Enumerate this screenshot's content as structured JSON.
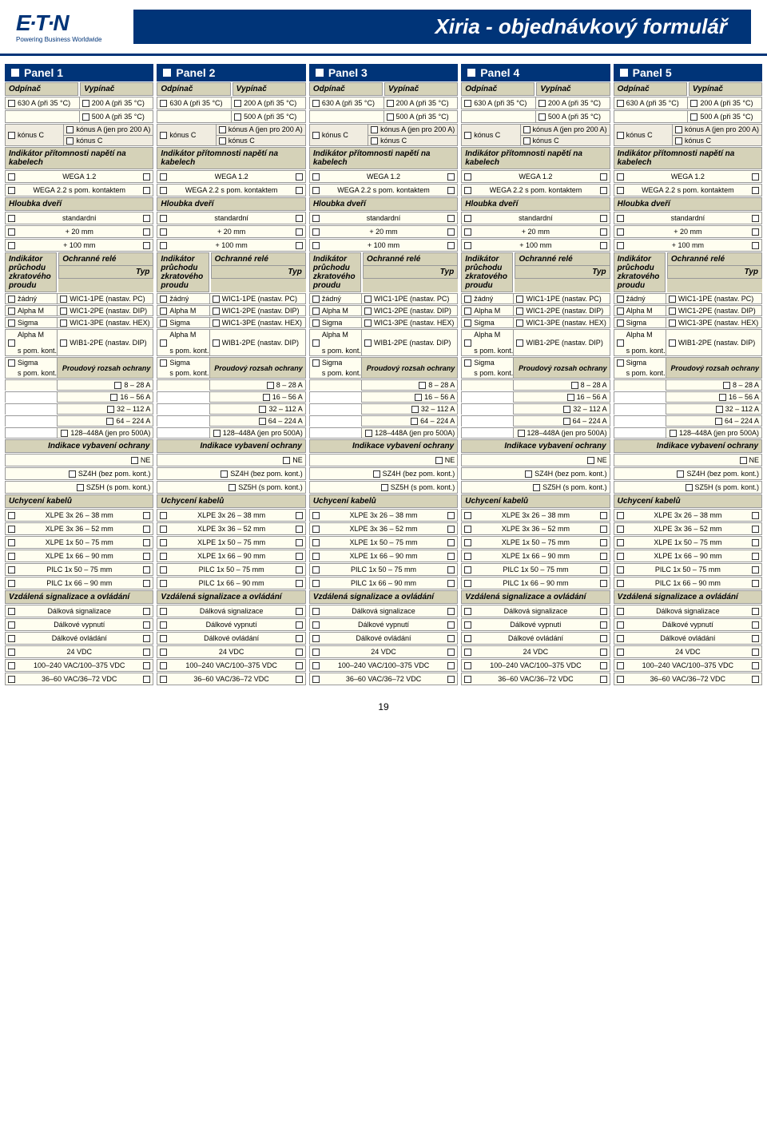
{
  "colors": {
    "navy": "#003478",
    "tan_header": "#d5d2b8",
    "cream_row": "#fffef0",
    "grey_row": "#f0ece0",
    "border": "#999"
  },
  "logo": {
    "main": "E·T·N",
    "sub": "Powering Business Worldwide"
  },
  "page_title": "Xiria - objednávkový formulář",
  "page_number": "19",
  "panel_label_prefix": "Panel",
  "panel_count": 5,
  "switch_section": {
    "left_header": "Odpínač",
    "right_header": "Vypínač",
    "left_rows": [
      "630 A (při 35 °C)"
    ],
    "right_rows": [
      "200 A (při 35 °C)",
      "500 A (při 35 °C)"
    ],
    "konus_left": "kónus C",
    "konus_right_a": "kónus A (jen pro 200 A)",
    "konus_right_c": "kónus C"
  },
  "indicator_section": {
    "header": "Indikátor přítomnosti napětí na kabelech",
    "rows": [
      "WEGA 1.2",
      "WEGA 2.2 s pom. kontaktem"
    ]
  },
  "door_section": {
    "header": "Hloubka dveří",
    "rows": [
      "standardní",
      "+ 20 mm",
      "+ 100 mm"
    ]
  },
  "relay_section": {
    "header": "Ochranné relé",
    "sub_header": "Typ",
    "left_header": "Indikátor průchodu zkratového proudu",
    "pairs": [
      [
        "žádný",
        "WIC1-1PE (nastav. PC)"
      ],
      [
        "Alpha M",
        "WIC1-2PE (nastav. DIP)"
      ],
      [
        "Sigma",
        "WIC1-3PE (nastav. HEX)"
      ],
      [
        "Alpha M\ns pom. kont.",
        "WIB1-2PE (nastav. DIP)"
      ]
    ],
    "range_header": "Proudový rozsah ochrany",
    "extra_left": "Sigma\ns pom. kont.",
    "ranges": [
      "8 – 28 A",
      "16 – 56 A",
      "32 – 112 A",
      "64 – 224 A",
      "128–448A (jen pro 500A)"
    ],
    "indication_header": "Indikace vybavení ochrany",
    "indication_rows": [
      "NE",
      "SZ4H (bez pom. kont.)",
      "SZ5H (s pom. kont.)"
    ]
  },
  "cable_section": {
    "header": "Uchycení kabelů",
    "rows": [
      "XLPE 3x 26 – 38 mm",
      "XLPE 3x 36 – 52 mm",
      "XLPE 1x 50 – 75 mm",
      "XLPE 1x 66 – 90 mm",
      "PILC 1x 50 – 75 mm",
      "PILC 1x 66 – 90 mm"
    ]
  },
  "remote_section": {
    "header": "Vzdálená signalizace a ovládání",
    "rows": [
      "Dálková signalizace",
      "Dálkové vypnutí",
      "Dálkové ovládání",
      "24 VDC",
      "100–240 VAC/100–375 VDC",
      "36–60 VAC/36–72 VDC"
    ]
  }
}
